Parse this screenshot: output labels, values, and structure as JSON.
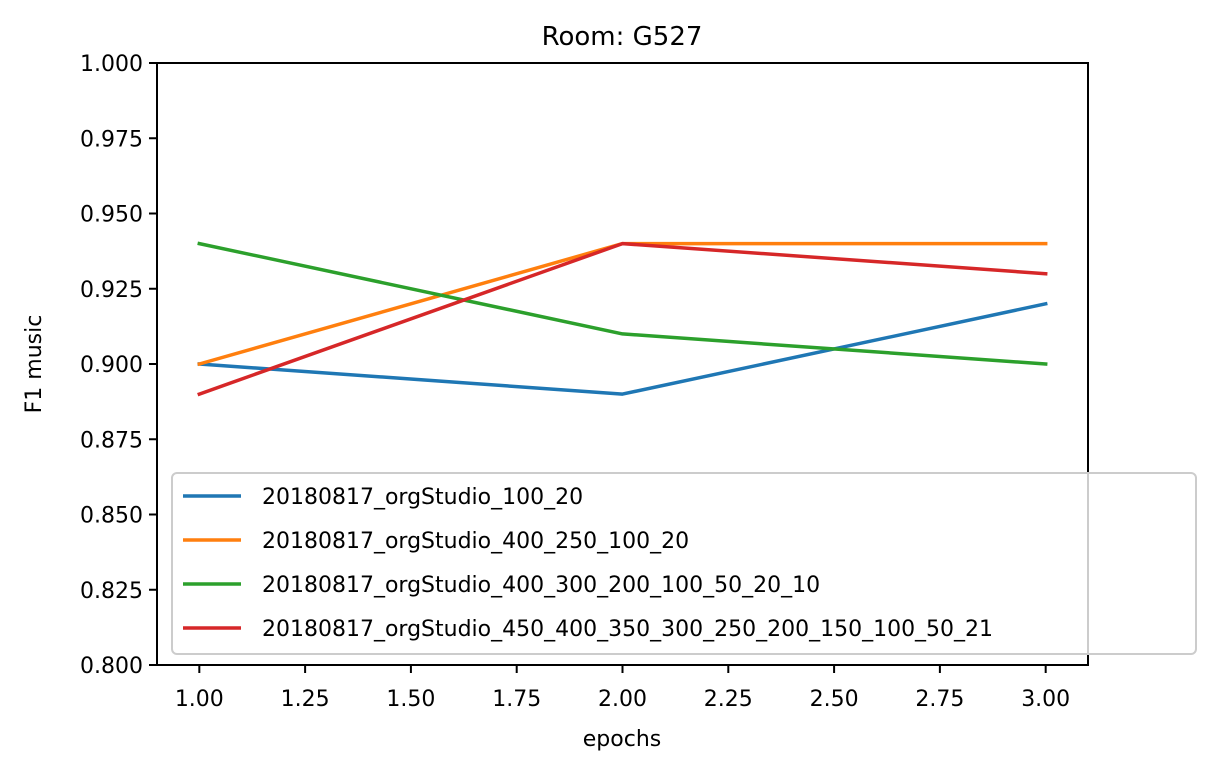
{
  "chart_data": {
    "type": "line",
    "title": "Room: G527",
    "xlabel": "epochs",
    "ylabel": "F1 music",
    "xlim": [
      0.9,
      3.1
    ],
    "ylim": [
      0.8,
      1.0
    ],
    "x_ticks": [
      "1.00",
      "1.25",
      "1.50",
      "1.75",
      "2.00",
      "2.25",
      "2.50",
      "2.75",
      "3.00"
    ],
    "y_ticks": [
      "0.800",
      "0.825",
      "0.850",
      "0.875",
      "0.900",
      "0.925",
      "0.950",
      "0.975",
      "1.000"
    ],
    "grid": false,
    "legend_position": "lower-right",
    "x": [
      1,
      2,
      3
    ],
    "series": [
      {
        "name": "20180817_orgStudio_100_20",
        "color": "#1f77b4",
        "values": [
          0.9,
          0.89,
          0.92
        ]
      },
      {
        "name": "20180817_orgStudio_400_250_100_20",
        "color": "#ff7f0e",
        "values": [
          0.9,
          0.94,
          0.94
        ]
      },
      {
        "name": "20180817_orgStudio_400_300_200_100_50_20_10",
        "color": "#2ca02c",
        "values": [
          0.94,
          0.91,
          0.9
        ]
      },
      {
        "name": "20180817_orgStudio_450_400_350_300_250_200_150_100_50_21",
        "color": "#d62728",
        "values": [
          0.89,
          0.94,
          0.93
        ]
      }
    ]
  }
}
